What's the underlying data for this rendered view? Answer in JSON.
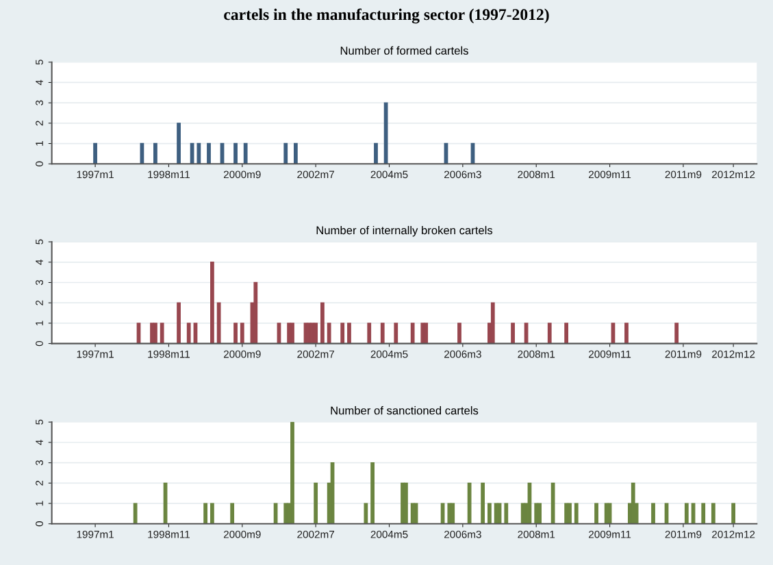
{
  "chart_data": [
    {
      "type": "bar",
      "title": "cartels in the manufacturing sector (1997-2012)",
      "subtitle": "Number of formed cartels",
      "color": "#3e5f80",
      "x": [
        "1997-01",
        "1998-03",
        "1998-07",
        "1999-02",
        "1999-06",
        "1999-08",
        "1999-11",
        "2000-03",
        "2000-07",
        "2000-10",
        "2001-10",
        "2002-01",
        "2004-01",
        "2004-04",
        "2005-10",
        "2006-06"
      ],
      "values": [
        1,
        1,
        1,
        2,
        1,
        1,
        1,
        1,
        1,
        1,
        1,
        1,
        1,
        3,
        1,
        1
      ],
      "xlim": [
        "1995-12",
        "2013-07"
      ],
      "xticks": [
        {
          "value": "1997-01",
          "label": "1997m1"
        },
        {
          "value": "1998-11",
          "label": "1998m11"
        },
        {
          "value": "2000-09",
          "label": "2000m9"
        },
        {
          "value": "2002-07",
          "label": "2002m7"
        },
        {
          "value": "2004-05",
          "label": "2004m5"
        },
        {
          "value": "2006-03",
          "label": "2006m3"
        },
        {
          "value": "2008-01",
          "label": "2008m1"
        },
        {
          "value": "2009-11",
          "label": "2009m11"
        },
        {
          "value": "2011-09",
          "label": "2011m9"
        },
        {
          "value": "2012-12",
          "label": "2012m12"
        }
      ],
      "ylim": [
        0,
        5
      ],
      "yticks": [
        0,
        1,
        2,
        3,
        4,
        5
      ],
      "grid": "y"
    },
    {
      "type": "bar",
      "title": "Number of internally broken cartels",
      "color": "#98474f",
      "x": [
        "1998-02",
        "1998-06",
        "1998-07",
        "1998-09",
        "1999-02",
        "1999-05",
        "1999-07",
        "1999-12",
        "2000-02",
        "2000-07",
        "2000-09",
        "2000-12",
        "2001-01",
        "2001-08",
        "2001-11",
        "2001-12",
        "2002-04",
        "2002-05",
        "2002-06",
        "2002-07",
        "2002-09",
        "2002-11",
        "2003-03",
        "2003-05",
        "2003-11",
        "2004-03",
        "2004-07",
        "2004-12",
        "2005-03",
        "2005-04",
        "2006-02",
        "2006-11",
        "2006-12",
        "2007-06",
        "2007-10",
        "2008-05",
        "2008-10",
        "2009-12",
        "2010-04",
        "2011-07"
      ],
      "values": [
        1,
        1,
        1,
        1,
        2,
        1,
        1,
        4,
        2,
        1,
        1,
        2,
        3,
        1,
        1,
        1,
        1,
        1,
        1,
        1,
        2,
        1,
        1,
        1,
        1,
        1,
        1,
        1,
        1,
        1,
        1,
        1,
        2,
        1,
        1,
        1,
        1,
        1,
        1,
        1
      ],
      "xlim": [
        "1995-12",
        "2013-07"
      ],
      "xticks": [
        {
          "value": "1997-01",
          "label": "1997m1"
        },
        {
          "value": "1998-11",
          "label": "1998m11"
        },
        {
          "value": "2000-09",
          "label": "2000m9"
        },
        {
          "value": "2002-07",
          "label": "2002m7"
        },
        {
          "value": "2004-05",
          "label": "2004m5"
        },
        {
          "value": "2006-03",
          "label": "2006m3"
        },
        {
          "value": "2008-01",
          "label": "2008m1"
        },
        {
          "value": "2009-11",
          "label": "2009m11"
        },
        {
          "value": "2011-09",
          "label": "2011m9"
        },
        {
          "value": "2012-12",
          "label": "2012m12"
        }
      ],
      "ylim": [
        0,
        5
      ],
      "yticks": [
        0,
        1,
        2,
        3,
        4,
        5
      ],
      "grid": "y"
    },
    {
      "type": "bar",
      "title": "Number of sanctioned cartels",
      "color": "#6b8540",
      "x": [
        "1998-01",
        "1998-10",
        "1999-10",
        "1999-12",
        "2000-06",
        "2001-07",
        "2001-10",
        "2001-11",
        "2001-12",
        "2002-07",
        "2002-11",
        "2002-12",
        "2003-10",
        "2003-12",
        "2004-09",
        "2004-10",
        "2004-12",
        "2005-01",
        "2005-09",
        "2005-11",
        "2005-12",
        "2006-05",
        "2006-09",
        "2006-11",
        "2007-01",
        "2007-02",
        "2007-04",
        "2007-09",
        "2007-10",
        "2007-11",
        "2008-01",
        "2008-02",
        "2008-06",
        "2008-10",
        "2008-11",
        "2009-01",
        "2009-07",
        "2009-10",
        "2009-11",
        "2010-05",
        "2010-06",
        "2010-07",
        "2010-12",
        "2011-04",
        "2011-10",
        "2011-12",
        "2012-03",
        "2012-06",
        "2012-12"
      ],
      "values": [
        1,
        2,
        1,
        1,
        1,
        1,
        1,
        1,
        5,
        2,
        2,
        3,
        1,
        3,
        2,
        2,
        1,
        1,
        1,
        1,
        1,
        2,
        2,
        1,
        1,
        1,
        1,
        1,
        1,
        2,
        1,
        1,
        2,
        1,
        1,
        1,
        1,
        1,
        1,
        1,
        2,
        1,
        1,
        1,
        1,
        1,
        1,
        1,
        1
      ],
      "xlim": [
        "1995-12",
        "2013-07"
      ],
      "xticks": [
        {
          "value": "1997-01",
          "label": "1997m1"
        },
        {
          "value": "1998-11",
          "label": "1998m11"
        },
        {
          "value": "2000-09",
          "label": "2000m9"
        },
        {
          "value": "2002-07",
          "label": "2002m7"
        },
        {
          "value": "2004-05",
          "label": "2004m5"
        },
        {
          "value": "2006-03",
          "label": "2006m3"
        },
        {
          "value": "2008-01",
          "label": "2008m1"
        },
        {
          "value": "2009-11",
          "label": "2009m11"
        },
        {
          "value": "2011-09",
          "label": "2011m9"
        },
        {
          "value": "2012-12",
          "label": "2012m12"
        }
      ],
      "ylim": [
        0,
        5
      ],
      "yticks": [
        0,
        1,
        2,
        3,
        4,
        5
      ],
      "grid": "y"
    }
  ]
}
